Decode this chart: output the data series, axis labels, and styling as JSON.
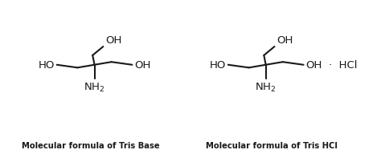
{
  "bg_color": "#ffffff",
  "line_color": "#1a1a1a",
  "text_color": "#1a1a1a",
  "label1": "Molecular formula of Tris Base",
  "label2": "Molecular formula of Tris HCl",
  "label_fontsize": 7.2,
  "label_fontweight": "bold",
  "group_fontsize": 9.5,
  "figsize": [
    4.74,
    2.03
  ],
  "dpi": 100,
  "HCl_label": "·  HCl"
}
